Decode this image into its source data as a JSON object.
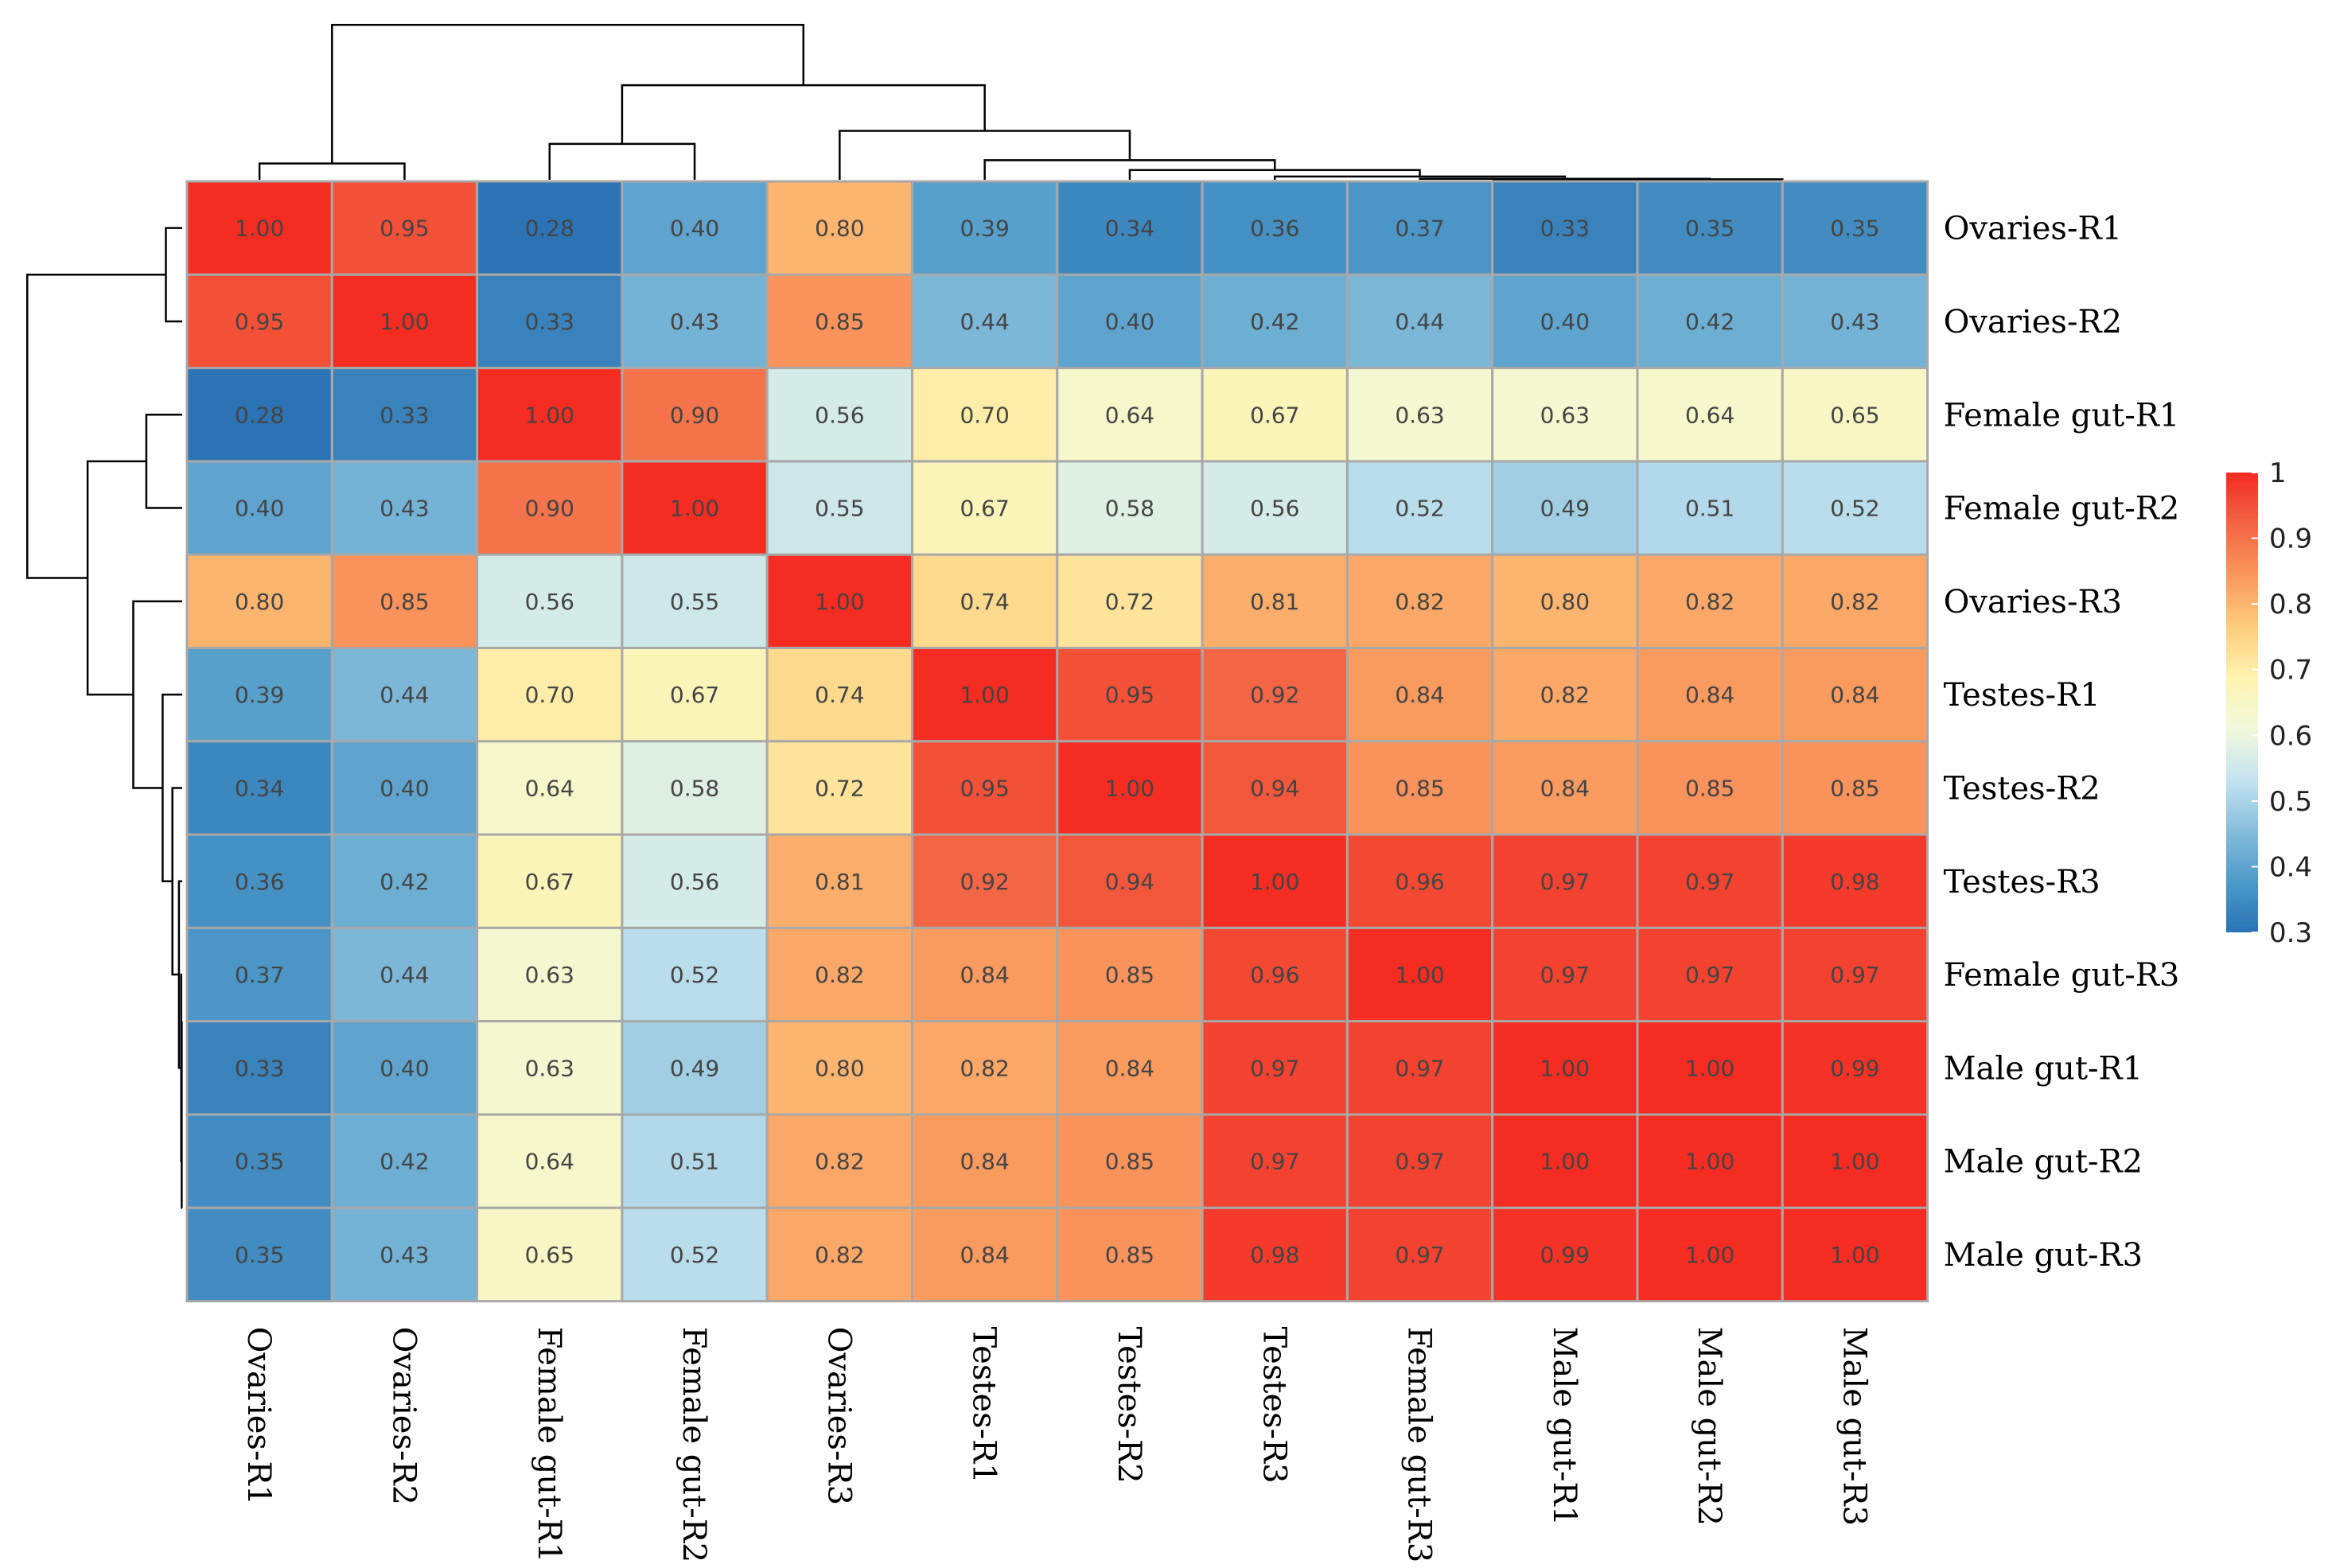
{
  "chart_data": {
    "type": "heatmap",
    "title": "",
    "rows": [
      "Ovaries-R1",
      "Ovaries-R2",
      "Female gut-R1",
      "Female gut-R2",
      "Ovaries-R3",
      "Testes-R1",
      "Testes-R2",
      "Testes-R3",
      "Female gut-R3",
      "Male gut-R1",
      "Male gut-R2",
      "Male gut-R3"
    ],
    "columns": [
      "Ovaries-R1",
      "Ovaries-R2",
      "Female gut-R1",
      "Female gut-R2",
      "Ovaries-R3",
      "Testes-R1",
      "Testes-R2",
      "Testes-R3",
      "Female gut-R3",
      "Male gut-R1",
      "Male gut-R2",
      "Male gut-R3"
    ],
    "values": [
      [
        1.0,
        0.95,
        0.28,
        0.4,
        0.8,
        0.39,
        0.34,
        0.36,
        0.37,
        0.33,
        0.35,
        0.35
      ],
      [
        0.95,
        1.0,
        0.33,
        0.43,
        0.85,
        0.44,
        0.4,
        0.42,
        0.44,
        0.4,
        0.42,
        0.43
      ],
      [
        0.28,
        0.33,
        1.0,
        0.9,
        0.56,
        0.7,
        0.64,
        0.67,
        0.63,
        0.63,
        0.64,
        0.65
      ],
      [
        0.4,
        0.43,
        0.9,
        1.0,
        0.55,
        0.67,
        0.58,
        0.56,
        0.52,
        0.49,
        0.51,
        0.52
      ],
      [
        0.8,
        0.85,
        0.56,
        0.55,
        1.0,
        0.74,
        0.72,
        0.81,
        0.82,
        0.8,
        0.82,
        0.82
      ],
      [
        0.39,
        0.44,
        0.7,
        0.67,
        0.74,
        1.0,
        0.95,
        0.92,
        0.84,
        0.82,
        0.84,
        0.84
      ],
      [
        0.34,
        0.4,
        0.64,
        0.58,
        0.72,
        0.95,
        1.0,
        0.94,
        0.85,
        0.84,
        0.85,
        0.85
      ],
      [
        0.36,
        0.42,
        0.67,
        0.56,
        0.81,
        0.92,
        0.94,
        1.0,
        0.96,
        0.97,
        0.97,
        0.98
      ],
      [
        0.37,
        0.44,
        0.63,
        0.52,
        0.82,
        0.84,
        0.85,
        0.96,
        1.0,
        0.97,
        0.97,
        0.97
      ],
      [
        0.33,
        0.4,
        0.63,
        0.49,
        0.8,
        0.82,
        0.84,
        0.97,
        0.97,
        1.0,
        1.0,
        0.99
      ],
      [
        0.35,
        0.42,
        0.64,
        0.51,
        0.82,
        0.84,
        0.85,
        0.97,
        0.97,
        1.0,
        1.0,
        1.0
      ],
      [
        0.35,
        0.43,
        0.65,
        0.52,
        0.82,
        0.84,
        0.85,
        0.98,
        0.97,
        0.99,
        1.0,
        1.0
      ]
    ],
    "value_format": "0.00",
    "legend": {
      "range": [
        0.3,
        1
      ],
      "ticks": [
        "1",
        "0.9",
        "0.8",
        "0.7",
        "0.6",
        "0.5",
        "0.4",
        "0.3"
      ],
      "position": "right"
    },
    "colors": {
      "low": "#2a71b2",
      "mid": "#fefebd",
      "high": "#f52a22",
      "gradient": [
        "#2b73b4",
        "#4e9ac9",
        "#87bedc",
        "#c5e3ef",
        "#f1f9da",
        "#fef3af",
        "#fdcb7c",
        "#f9975d",
        "#f26444",
        "#f42c22"
      ],
      "grid": "#a8a8a8",
      "dendrogram": "#000000"
    }
  }
}
